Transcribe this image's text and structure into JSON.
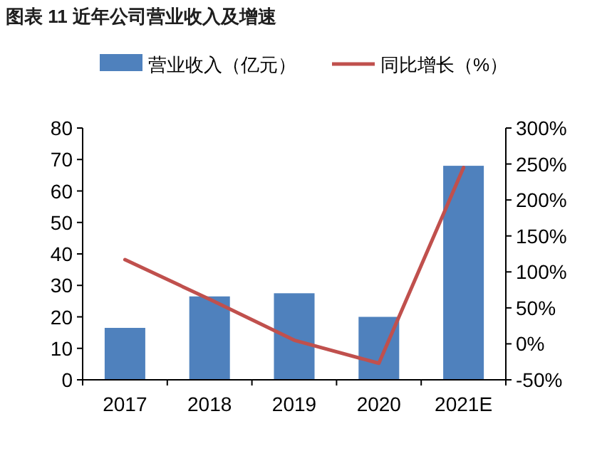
{
  "chart_data": {
    "type": "bar",
    "title": "图表 11  近年公司营业收入及增速",
    "categories": [
      "2017",
      "2018",
      "2019",
      "2020",
      "2021E"
    ],
    "series": [
      {
        "name": "营业收入（亿元）",
        "color": "#4f81bd",
        "values": [
          16.5,
          26.5,
          27.5,
          20,
          68
        ]
      },
      {
        "name": "同比增长（%）",
        "type": "line",
        "axis": "y2",
        "color": "#c0504d",
        "values": [
          117,
          62,
          5,
          -27,
          245
        ]
      }
    ],
    "ylim": [
      0,
      80
    ],
    "yticks": [
      0,
      10,
      20,
      30,
      40,
      50,
      60,
      70,
      80
    ],
    "y2lim": [
      -50,
      300
    ],
    "y2ticks": [
      {
        "value": -50,
        "label": "-50%"
      },
      {
        "value": 0,
        "label": "0%"
      },
      {
        "value": 50,
        "label": "50%"
      },
      {
        "value": 100,
        "label": "100%"
      },
      {
        "value": 150,
        "label": "150%"
      },
      {
        "value": 200,
        "label": "200%"
      },
      {
        "value": 250,
        "label": "250%"
      },
      {
        "value": 300,
        "label": "300%"
      }
    ],
    "legend": "top",
    "grid": false
  }
}
